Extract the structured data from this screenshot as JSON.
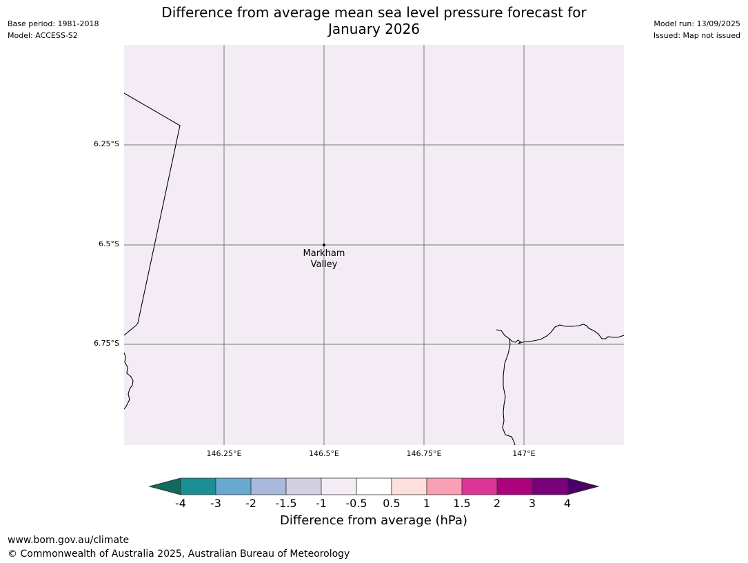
{
  "header": {
    "title_line1": "Difference from average mean sea level pressure forecast for",
    "title_line2": "January 2026",
    "base_period": "Base period: 1981-2018",
    "model": "Model: ACCESS-S2",
    "model_run": "Model run: 13/09/2025",
    "issued": "Issued: Map not issued"
  },
  "map": {
    "fill_color": "#f3ecf5",
    "grid_color": "#777777",
    "coast_color": "#000000",
    "lat_ticks": [
      {
        "label": "6.25°S",
        "value": -6.25
      },
      {
        "label": "6.5°S",
        "value": -6.5
      },
      {
        "label": "6.75°S",
        "value": -6.75
      }
    ],
    "lon_ticks": [
      {
        "label": "146.25°E",
        "value": 146.25
      },
      {
        "label": "146.5°E",
        "value": 146.5
      },
      {
        "label": "146.75°E",
        "value": 146.75
      },
      {
        "label": "147°E",
        "value": 147.0
      }
    ],
    "place": {
      "name_line1": "Markham",
      "name_line2": "Valley",
      "lat": -6.5,
      "lon": 146.5
    }
  },
  "colorbar": {
    "title": "Difference from average (hPa)",
    "under_color": "#0e6b5e",
    "over_color": "#4a0068",
    "bins": [
      {
        "from": -4,
        "to": -3,
        "color": "#1a9094"
      },
      {
        "from": -3,
        "to": -2,
        "color": "#67a9cf"
      },
      {
        "from": -2,
        "to": -1.5,
        "color": "#a9b9db"
      },
      {
        "from": -1.5,
        "to": -1,
        "color": "#d3d0e4"
      },
      {
        "from": -1,
        "to": -0.5,
        "color": "#f3ecf5"
      },
      {
        "from": -0.5,
        "to": 0.5,
        "color": "#ffffff"
      },
      {
        "from": 0.5,
        "to": 1,
        "color": "#fde0dd"
      },
      {
        "from": 1,
        "to": 1.5,
        "color": "#f99fb6"
      },
      {
        "from": 1.5,
        "to": 2,
        "color": "#dc3497"
      },
      {
        "from": 2,
        "to": 3,
        "color": "#ad017e"
      },
      {
        "from": 3,
        "to": 4,
        "color": "#7a017a"
      }
    ],
    "labels": [
      "-4",
      "-3",
      "-2",
      "-1.5",
      "-1",
      "-0.5",
      "0.5",
      "1",
      "1.5",
      "2",
      "3",
      "4"
    ]
  },
  "footer": {
    "url": "www.bom.gov.au/climate",
    "copyright": "© Commonwealth of Australia 2025, Australian Bureau of Meteorology"
  }
}
